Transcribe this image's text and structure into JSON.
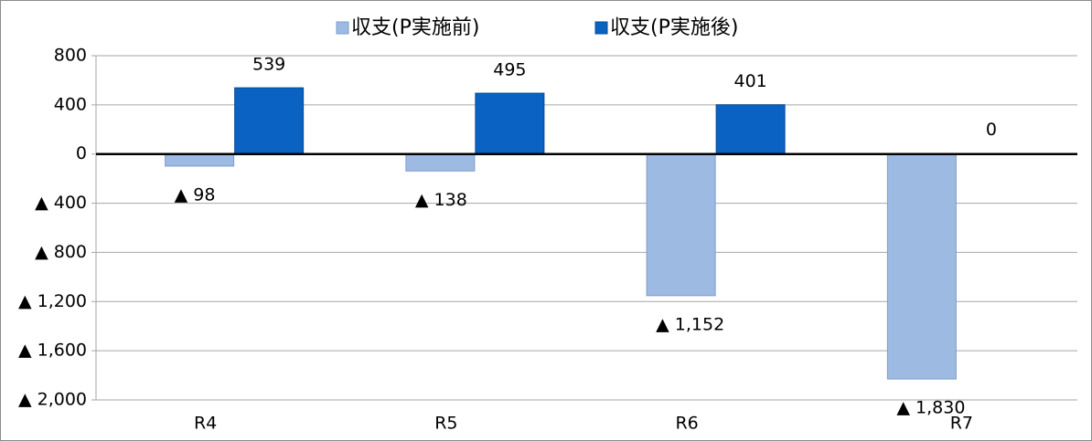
{
  "chart_data": {
    "type": "bar",
    "categories": [
      "R4",
      "R5",
      "R6",
      "R7"
    ],
    "series": [
      {
        "name": "収支(P実施前)",
        "color": "#9dbae2",
        "values": [
          -98,
          -138,
          -1152,
          -1830
        ],
        "value_labels": [
          "▲ 98",
          "▲ 138",
          "▲ 1,152",
          "▲ 1,830"
        ]
      },
      {
        "name": "収支(P実施後)",
        "color": "#0a62c2",
        "values": [
          539,
          495,
          401,
          0
        ]
      }
    ],
    "ylim": [
      -2000,
      800
    ],
    "yticks": [
      800,
      400,
      0,
      {
        "value": -400,
        "label": "▲ 400"
      },
      {
        "value": -800,
        "label": "▲ 800"
      },
      {
        "value": -1200,
        "label": "▲ 1,200"
      },
      {
        "value": -1600,
        "label": "▲ 1,600"
      },
      {
        "value": -2000,
        "label": "▲ 2,000"
      }
    ],
    "grid": true,
    "legend": "top"
  }
}
